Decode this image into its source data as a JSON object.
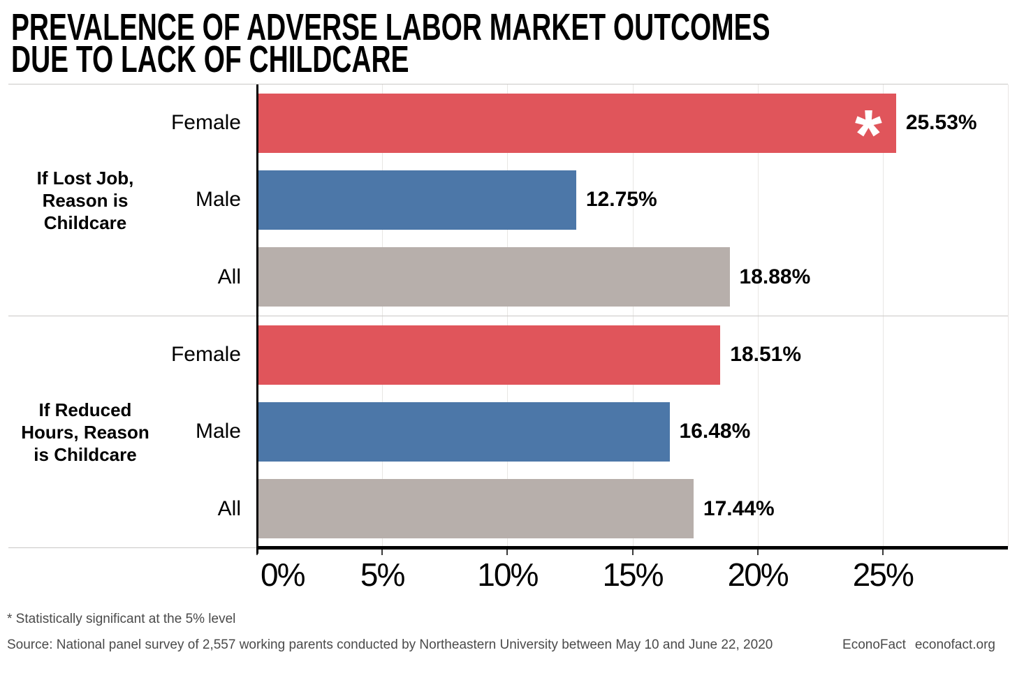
{
  "title": {
    "line1": "PREVALENCE OF ADVERSE LABOR MARKET OUTCOMES",
    "line2": "DUE TO LACK OF CHILDCARE"
  },
  "chart_data": {
    "type": "bar",
    "orientation": "horizontal",
    "unit": "percent",
    "xlim": [
      0,
      30
    ],
    "x_ticks": [
      0,
      5,
      10,
      15,
      20,
      25
    ],
    "x_tick_labels": [
      "0%",
      "5%",
      "10%",
      "15%",
      "20%",
      "25%"
    ],
    "grid": true,
    "legend": "none",
    "colors": {
      "Female": "#e0555b",
      "Male": "#4c77a8",
      "All": "#b7afab"
    },
    "significance_marker": "*",
    "groups": [
      {
        "label": "If Lost Job, Reason is Childcare",
        "bars": [
          {
            "category": "Female",
            "value": 25.53,
            "display": "25.53%",
            "significant": true
          },
          {
            "category": "Male",
            "value": 12.75,
            "display": "12.75%",
            "significant": false
          },
          {
            "category": "All",
            "value": 18.88,
            "display": "18.88%",
            "significant": false
          }
        ]
      },
      {
        "label": "If Reduced Hours, Reason is Childcare",
        "bars": [
          {
            "category": "Female",
            "value": 18.51,
            "display": "18.51%",
            "significant": false
          },
          {
            "category": "Male",
            "value": 16.48,
            "display": "16.48%",
            "significant": false
          },
          {
            "category": "All",
            "value": 17.44,
            "display": "17.44%",
            "significant": false
          }
        ]
      }
    ]
  },
  "footnotes": {
    "significance": "* Statistically significant at the 5% level",
    "source": "Source: National panel survey of 2,557 working parents conducted by Northeastern University between May 10 and June 22, 2020",
    "brand": "EconoFact",
    "brand_site": "econofact.org"
  }
}
